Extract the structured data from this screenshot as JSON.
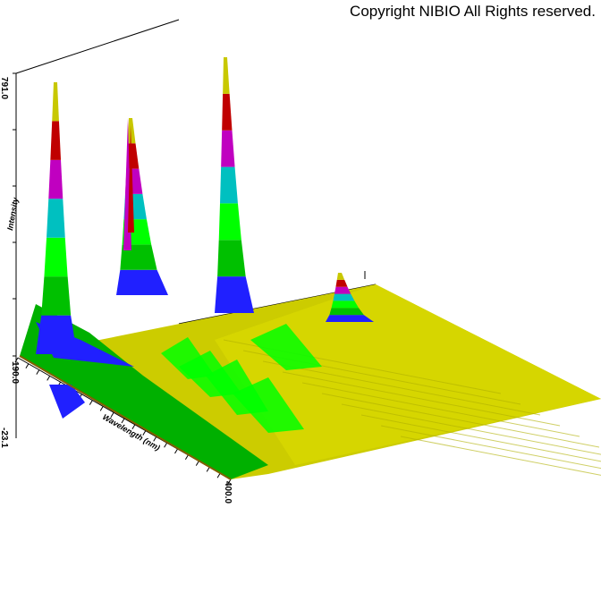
{
  "copyright": "Copyright NIBIO All Rights reserved.",
  "chart_data": {
    "type": "area",
    "view": "3D waterfall surface of spectral intensity",
    "ylabel": "Intensity",
    "xlabel": "Wavelength (nm)",
    "x_ticks": {
      "start": "190.0",
      "end": "400.0"
    },
    "z_ticks": {
      "top": "791.0",
      "bottom": "-23.1"
    },
    "xlim": [
      190.0,
      400.0
    ],
    "zlim": [
      -23.1,
      791.0
    ],
    "color_bands": [
      "#2020ff",
      "#00c000",
      "#00ff00",
      "#00c0c0",
      "#c000c0",
      "#c00000",
      "#c8c800"
    ],
    "peaks": [
      {
        "x": 193,
        "z": 770
      },
      {
        "x": 212,
        "z": 640
      },
      {
        "x": 222,
        "z": 270
      },
      {
        "x": 254,
        "z": 791
      },
      {
        "x": 300,
        "z": 60
      },
      {
        "x": 340,
        "z": 30
      }
    ]
  }
}
